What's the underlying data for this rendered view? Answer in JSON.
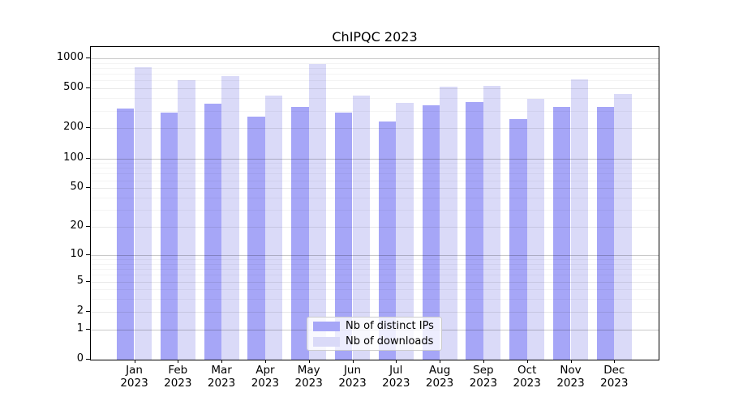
{
  "chart_data": {
    "type": "bar",
    "title": "ChIPQC 2023",
    "categories": [
      "Jan",
      "Feb",
      "Mar",
      "Apr",
      "May",
      "Jun",
      "Jul",
      "Aug",
      "Sep",
      "Oct",
      "Nov",
      "Dec"
    ],
    "category_year": "2023",
    "series": [
      {
        "name": "Nb of distinct IPs",
        "color": "#a6a6f7",
        "values": [
          315,
          290,
          355,
          262,
          330,
          288,
          234,
          340,
          365,
          248,
          330,
          326
        ]
      },
      {
        "name": "Nb of downloads",
        "color": "#dadaf8",
        "values": [
          820,
          610,
          665,
          425,
          885,
          425,
          362,
          520,
          530,
          398,
          612,
          443
        ]
      }
    ],
    "xlabel": "",
    "ylabel": "",
    "y_scale": "log1p",
    "ylim": [
      0,
      1296
    ],
    "y_ticks": [
      0,
      1,
      2,
      5,
      10,
      20,
      50,
      100,
      200,
      500,
      1000
    ],
    "grid_major_ticks": [
      1,
      10,
      100,
      1000
    ],
    "grid": "on",
    "legend_position": "bottom-center"
  },
  "colors": {
    "series_ips": "#a6a6f7",
    "series_downloads": "#dadaf8",
    "axis_spine": "#000000",
    "legend_border": "#cccccc",
    "background": "#ffffff"
  }
}
